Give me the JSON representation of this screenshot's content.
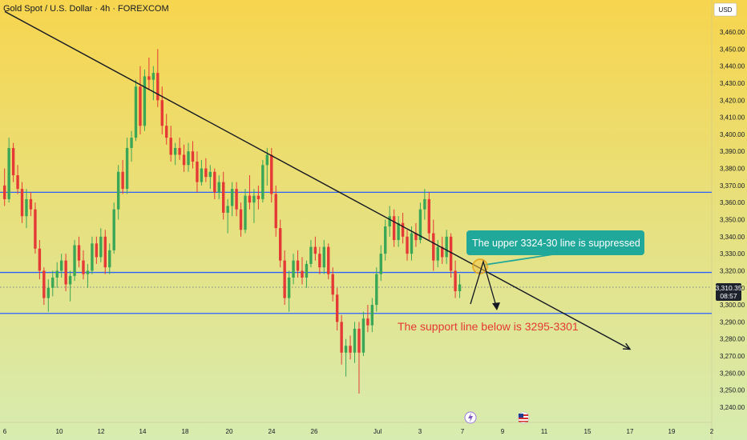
{
  "header": {
    "title": "Gold Spot / U.S. Dollar · 4h · FOREXCOM",
    "currency_button": "USD"
  },
  "chart_data": {
    "type": "candlestick",
    "title": "Gold Spot / U.S. Dollar · 4h · FOREXCOM",
    "ylim": [
      3235,
      3470
    ],
    "y_ticks": [
      3240,
      3250,
      3260,
      3270,
      3280,
      3290,
      3300,
      3310,
      3320,
      3330,
      3340,
      3350,
      3360,
      3370,
      3380,
      3390,
      3400,
      3410,
      3420,
      3430,
      3440,
      3450,
      3460
    ],
    "x_ticks": [
      "6",
      "10",
      "12",
      "14",
      "18",
      "20",
      "24",
      "26",
      "Jul",
      "3",
      "7",
      "9",
      "11",
      "15",
      "17",
      "19",
      "2"
    ],
    "last_price": "3,310.35",
    "countdown": "08:57",
    "colors": {
      "up": "#3aa757",
      "down": "#e53935",
      "level": "#2962ff",
      "callout": "#20a89a",
      "background_top": "#f7d54e",
      "background_bottom": "#d7ecb0"
    },
    "horizontal_levels": [
      3366,
      3319,
      3295
    ],
    "dotted_level": 3310.35,
    "trendline": {
      "from": [
        "6",
        3472
      ],
      "to": [
        "17",
        3274
      ]
    },
    "candles": [
      {
        "o": 3370,
        "h": 3380,
        "l": 3358,
        "c": 3362
      },
      {
        "o": 3362,
        "h": 3398,
        "l": 3360,
        "c": 3392
      },
      {
        "o": 3392,
        "h": 3395,
        "l": 3372,
        "c": 3376
      },
      {
        "o": 3376,
        "h": 3382,
        "l": 3365,
        "c": 3368
      },
      {
        "o": 3368,
        "h": 3372,
        "l": 3348,
        "c": 3352
      },
      {
        "o": 3352,
        "h": 3368,
        "l": 3345,
        "c": 3362
      },
      {
        "o": 3362,
        "h": 3366,
        "l": 3352,
        "c": 3356
      },
      {
        "o": 3356,
        "h": 3360,
        "l": 3330,
        "c": 3333
      },
      {
        "o": 3333,
        "h": 3338,
        "l": 3315,
        "c": 3320
      },
      {
        "o": 3320,
        "h": 3322,
        "l": 3300,
        "c": 3304
      },
      {
        "o": 3304,
        "h": 3315,
        "l": 3296,
        "c": 3310
      },
      {
        "o": 3310,
        "h": 3320,
        "l": 3305,
        "c": 3316
      },
      {
        "o": 3316,
        "h": 3325,
        "l": 3310,
        "c": 3320
      },
      {
        "o": 3320,
        "h": 3330,
        "l": 3316,
        "c": 3326
      },
      {
        "o": 3326,
        "h": 3330,
        "l": 3308,
        "c": 3312
      },
      {
        "o": 3312,
        "h": 3320,
        "l": 3302,
        "c": 3317
      },
      {
        "o": 3317,
        "h": 3338,
        "l": 3314,
        "c": 3335
      },
      {
        "o": 3335,
        "h": 3340,
        "l": 3322,
        "c": 3326
      },
      {
        "o": 3326,
        "h": 3332,
        "l": 3315,
        "c": 3318
      },
      {
        "o": 3318,
        "h": 3324,
        "l": 3310,
        "c": 3320
      },
      {
        "o": 3320,
        "h": 3340,
        "l": 3318,
        "c": 3336
      },
      {
        "o": 3336,
        "h": 3340,
        "l": 3324,
        "c": 3328
      },
      {
        "o": 3328,
        "h": 3345,
        "l": 3325,
        "c": 3340
      },
      {
        "o": 3340,
        "h": 3344,
        "l": 3318,
        "c": 3322
      },
      {
        "o": 3322,
        "h": 3336,
        "l": 3318,
        "c": 3332
      },
      {
        "o": 3332,
        "h": 3360,
        "l": 3330,
        "c": 3356
      },
      {
        "o": 3356,
        "h": 3382,
        "l": 3350,
        "c": 3378
      },
      {
        "o": 3378,
        "h": 3385,
        "l": 3365,
        "c": 3368
      },
      {
        "o": 3368,
        "h": 3398,
        "l": 3365,
        "c": 3392
      },
      {
        "o": 3392,
        "h": 3402,
        "l": 3384,
        "c": 3398
      },
      {
        "o": 3398,
        "h": 3432,
        "l": 3396,
        "c": 3428
      },
      {
        "o": 3428,
        "h": 3440,
        "l": 3400,
        "c": 3405
      },
      {
        "o": 3405,
        "h": 3438,
        "l": 3402,
        "c": 3434
      },
      {
        "o": 3434,
        "h": 3445,
        "l": 3426,
        "c": 3432
      },
      {
        "o": 3432,
        "h": 3440,
        "l": 3420,
        "c": 3436
      },
      {
        "o": 3436,
        "h": 3450,
        "l": 3416,
        "c": 3420
      },
      {
        "o": 3420,
        "h": 3428,
        "l": 3400,
        "c": 3405
      },
      {
        "o": 3405,
        "h": 3412,
        "l": 3394,
        "c": 3398
      },
      {
        "o": 3398,
        "h": 3405,
        "l": 3384,
        "c": 3388
      },
      {
        "o": 3388,
        "h": 3395,
        "l": 3382,
        "c": 3392
      },
      {
        "o": 3392,
        "h": 3398,
        "l": 3385,
        "c": 3388
      },
      {
        "o": 3388,
        "h": 3394,
        "l": 3378,
        "c": 3382
      },
      {
        "o": 3382,
        "h": 3395,
        "l": 3378,
        "c": 3390
      },
      {
        "o": 3390,
        "h": 3396,
        "l": 3380,
        "c": 3384
      },
      {
        "o": 3384,
        "h": 3390,
        "l": 3366,
        "c": 3372
      },
      {
        "o": 3372,
        "h": 3385,
        "l": 3370,
        "c": 3380
      },
      {
        "o": 3380,
        "h": 3386,
        "l": 3372,
        "c": 3375
      },
      {
        "o": 3375,
        "h": 3382,
        "l": 3368,
        "c": 3378
      },
      {
        "o": 3378,
        "h": 3380,
        "l": 3362,
        "c": 3366
      },
      {
        "o": 3366,
        "h": 3376,
        "l": 3362,
        "c": 3372
      },
      {
        "o": 3372,
        "h": 3378,
        "l": 3350,
        "c": 3354
      },
      {
        "o": 3354,
        "h": 3362,
        "l": 3342,
        "c": 3358
      },
      {
        "o": 3358,
        "h": 3372,
        "l": 3352,
        "c": 3368
      },
      {
        "o": 3368,
        "h": 3372,
        "l": 3352,
        "c": 3356
      },
      {
        "o": 3356,
        "h": 3360,
        "l": 3340,
        "c": 3344
      },
      {
        "o": 3344,
        "h": 3368,
        "l": 3342,
        "c": 3364
      },
      {
        "o": 3364,
        "h": 3376,
        "l": 3356,
        "c": 3360
      },
      {
        "o": 3360,
        "h": 3368,
        "l": 3348,
        "c": 3364
      },
      {
        "o": 3364,
        "h": 3370,
        "l": 3356,
        "c": 3362
      },
      {
        "o": 3362,
        "h": 3385,
        "l": 3360,
        "c": 3382
      },
      {
        "o": 3382,
        "h": 3392,
        "l": 3370,
        "c": 3388
      },
      {
        "o": 3388,
        "h": 3392,
        "l": 3360,
        "c": 3365
      },
      {
        "o": 3365,
        "h": 3370,
        "l": 3340,
        "c": 3345
      },
      {
        "o": 3345,
        "h": 3350,
        "l": 3322,
        "c": 3326
      },
      {
        "o": 3326,
        "h": 3332,
        "l": 3300,
        "c": 3304
      },
      {
        "o": 3304,
        "h": 3320,
        "l": 3296,
        "c": 3316
      },
      {
        "o": 3316,
        "h": 3330,
        "l": 3312,
        "c": 3326
      },
      {
        "o": 3326,
        "h": 3332,
        "l": 3316,
        "c": 3320
      },
      {
        "o": 3320,
        "h": 3328,
        "l": 3312,
        "c": 3316
      },
      {
        "o": 3316,
        "h": 3326,
        "l": 3310,
        "c": 3324
      },
      {
        "o": 3324,
        "h": 3338,
        "l": 3322,
        "c": 3334
      },
      {
        "o": 3334,
        "h": 3340,
        "l": 3326,
        "c": 3330
      },
      {
        "o": 3330,
        "h": 3334,
        "l": 3318,
        "c": 3322
      },
      {
        "o": 3322,
        "h": 3338,
        "l": 3318,
        "c": 3334
      },
      {
        "o": 3334,
        "h": 3336,
        "l": 3315,
        "c": 3318
      },
      {
        "o": 3318,
        "h": 3322,
        "l": 3302,
        "c": 3306
      },
      {
        "o": 3306,
        "h": 3310,
        "l": 3285,
        "c": 3290
      },
      {
        "o": 3290,
        "h": 3294,
        "l": 3265,
        "c": 3272
      },
      {
        "o": 3272,
        "h": 3280,
        "l": 3258,
        "c": 3276
      },
      {
        "o": 3276,
        "h": 3282,
        "l": 3268,
        "c": 3272
      },
      {
        "o": 3272,
        "h": 3290,
        "l": 3266,
        "c": 3286
      },
      {
        "o": 3286,
        "h": 3290,
        "l": 3248,
        "c": 3272
      },
      {
        "o": 3272,
        "h": 3296,
        "l": 3270,
        "c": 3292
      },
      {
        "o": 3292,
        "h": 3300,
        "l": 3284,
        "c": 3288
      },
      {
        "o": 3288,
        "h": 3304,
        "l": 3284,
        "c": 3300
      },
      {
        "o": 3300,
        "h": 3322,
        "l": 3296,
        "c": 3318
      },
      {
        "o": 3318,
        "h": 3335,
        "l": 3314,
        "c": 3330
      },
      {
        "o": 3330,
        "h": 3350,
        "l": 3326,
        "c": 3346
      },
      {
        "o": 3346,
        "h": 3358,
        "l": 3340,
        "c": 3352
      },
      {
        "o": 3352,
        "h": 3356,
        "l": 3334,
        "c": 3338
      },
      {
        "o": 3338,
        "h": 3352,
        "l": 3334,
        "c": 3348
      },
      {
        "o": 3348,
        "h": 3354,
        "l": 3336,
        "c": 3340
      },
      {
        "o": 3340,
        "h": 3344,
        "l": 3326,
        "c": 3330
      },
      {
        "o": 3330,
        "h": 3346,
        "l": 3326,
        "c": 3342
      },
      {
        "o": 3342,
        "h": 3348,
        "l": 3334,
        "c": 3338
      },
      {
        "o": 3338,
        "h": 3360,
        "l": 3336,
        "c": 3356
      },
      {
        "o": 3356,
        "h": 3368,
        "l": 3350,
        "c": 3362
      },
      {
        "o": 3362,
        "h": 3366,
        "l": 3338,
        "c": 3342
      },
      {
        "o": 3342,
        "h": 3350,
        "l": 3320,
        "c": 3326
      },
      {
        "o": 3326,
        "h": 3338,
        "l": 3322,
        "c": 3334
      },
      {
        "o": 3334,
        "h": 3340,
        "l": 3324,
        "c": 3328
      },
      {
        "o": 3328,
        "h": 3344,
        "l": 3324,
        "c": 3340
      },
      {
        "o": 3340,
        "h": 3342,
        "l": 3316,
        "c": 3320
      },
      {
        "o": 3320,
        "h": 3326,
        "l": 3304,
        "c": 3308
      },
      {
        "o": 3308,
        "h": 3318,
        "l": 3304,
        "c": 3312
      }
    ]
  },
  "annotations": {
    "callout": "The upper 3324-30 line is suppressed",
    "support_text": "The support line below is 3295-3301"
  },
  "event_icons": [
    "lightning-icon",
    "us-flag-icon"
  ]
}
